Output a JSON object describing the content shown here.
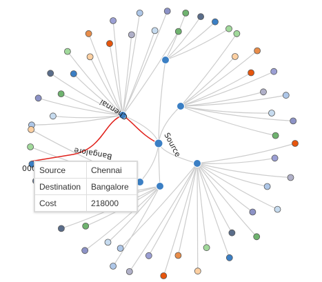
{
  "graph": {
    "root_label": "Source",
    "path_labels": [
      "Chennai",
      "Bangalore",
      "218000"
    ],
    "colors": {
      "hub": "#3b7fc4",
      "link": "#cccccc",
      "highlight": "#e0201a",
      "leaf_palette": [
        "#aec7e8",
        "#3b7fc4",
        "#9b9fd4",
        "#6fb36f",
        "#e88d4a",
        "#c6dbef",
        "#a1d99b",
        "#b0b0c8",
        "#5a6d8a",
        "#e6550d",
        "#8c92c6",
        "#fdd0a2"
      ]
    }
  },
  "tooltip": {
    "rows": [
      {
        "key": "Source",
        "value": "Chennai"
      },
      {
        "key": "Destination",
        "value": "Bangalore"
      },
      {
        "key": "Cost",
        "value": "218000"
      }
    ]
  }
}
